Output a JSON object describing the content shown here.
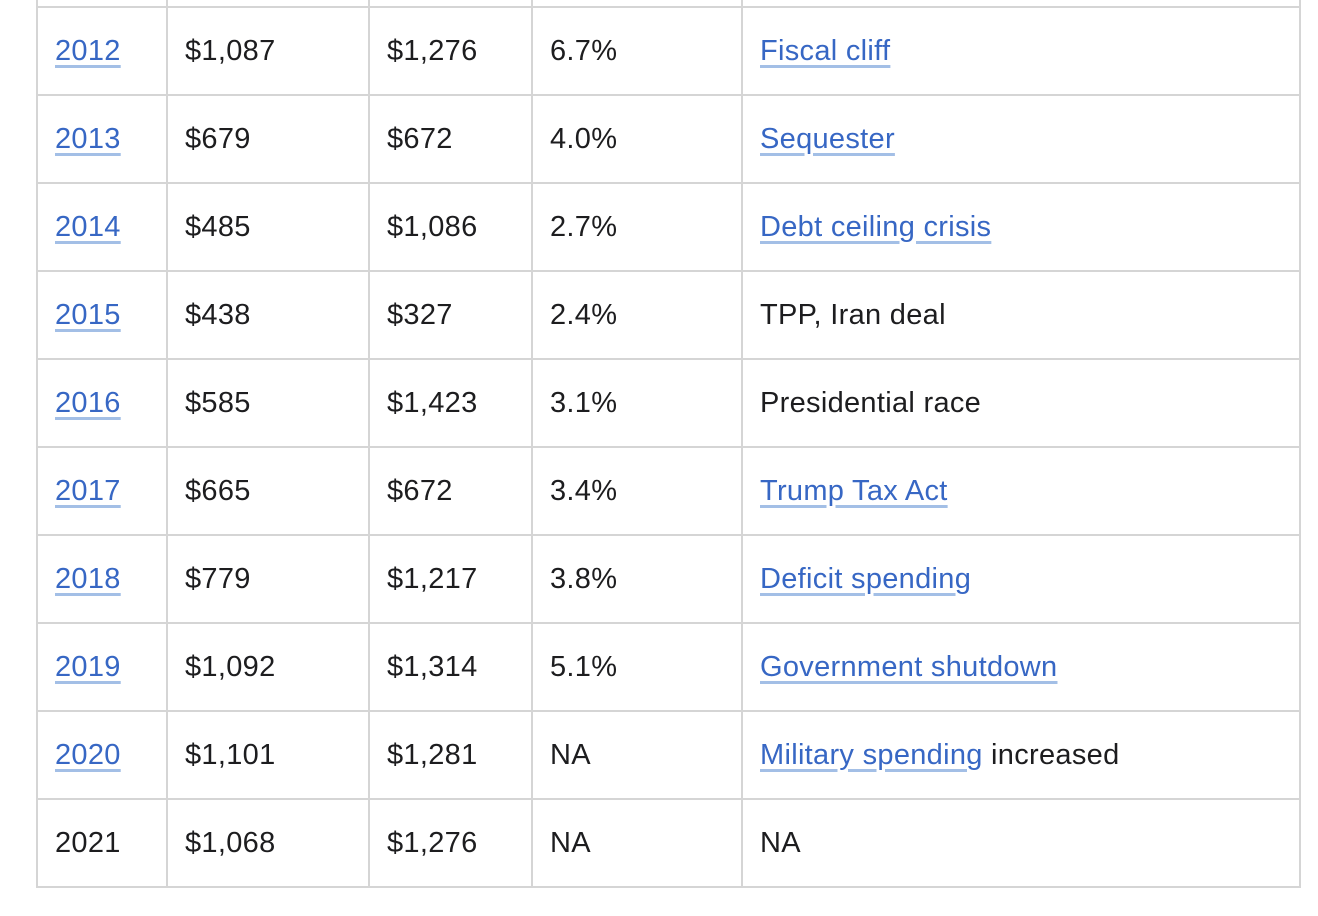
{
  "colors": {
    "link": "#3767c4",
    "link_underline": "#a3bfe6",
    "text": "#1d1d1f",
    "border": "#d5d5d5",
    "background": "#ffffff"
  },
  "table": {
    "columns": [
      "year",
      "amount-1",
      "amount-2",
      "percent",
      "event"
    ],
    "rows": [
      {
        "cells": [
          {
            "name": "year-cell",
            "parts": [
              {
                "text": "2012",
                "link": true
              }
            ]
          },
          {
            "name": "amount-1-cell",
            "parts": [
              {
                "text": "$1,087",
                "link": false
              }
            ]
          },
          {
            "name": "amount-2-cell",
            "parts": [
              {
                "text": "$1,276",
                "link": false
              }
            ]
          },
          {
            "name": "percent-cell",
            "parts": [
              {
                "text": "6.7%",
                "link": false
              }
            ]
          },
          {
            "name": "event-cell",
            "parts": [
              {
                "text": "Fiscal cliff",
                "link": true
              }
            ]
          }
        ]
      },
      {
        "cells": [
          {
            "name": "year-cell",
            "parts": [
              {
                "text": "2013",
                "link": true
              }
            ]
          },
          {
            "name": "amount-1-cell",
            "parts": [
              {
                "text": "$679",
                "link": false
              }
            ]
          },
          {
            "name": "amount-2-cell",
            "parts": [
              {
                "text": "$672",
                "link": false
              }
            ]
          },
          {
            "name": "percent-cell",
            "parts": [
              {
                "text": "4.0%",
                "link": false
              }
            ]
          },
          {
            "name": "event-cell",
            "parts": [
              {
                "text": "Sequester",
                "link": true
              }
            ]
          }
        ]
      },
      {
        "cells": [
          {
            "name": "year-cell",
            "parts": [
              {
                "text": "2014",
                "link": true
              }
            ]
          },
          {
            "name": "amount-1-cell",
            "parts": [
              {
                "text": "$485",
                "link": false
              }
            ]
          },
          {
            "name": "amount-2-cell",
            "parts": [
              {
                "text": "$1,086",
                "link": false
              }
            ]
          },
          {
            "name": "percent-cell",
            "parts": [
              {
                "text": "2.7%",
                "link": false
              }
            ]
          },
          {
            "name": "event-cell",
            "parts": [
              {
                "text": "Debt ceiling crisis",
                "link": true
              }
            ]
          }
        ]
      },
      {
        "cells": [
          {
            "name": "year-cell",
            "parts": [
              {
                "text": "2015",
                "link": true
              }
            ]
          },
          {
            "name": "amount-1-cell",
            "parts": [
              {
                "text": "$438",
                "link": false
              }
            ]
          },
          {
            "name": "amount-2-cell",
            "parts": [
              {
                "text": "$327",
                "link": false
              }
            ]
          },
          {
            "name": "percent-cell",
            "parts": [
              {
                "text": "2.4%",
                "link": false
              }
            ]
          },
          {
            "name": "event-cell",
            "parts": [
              {
                "text": "TPP, Iran deal",
                "link": false
              }
            ]
          }
        ]
      },
      {
        "cells": [
          {
            "name": "year-cell",
            "parts": [
              {
                "text": "2016",
                "link": true
              }
            ]
          },
          {
            "name": "amount-1-cell",
            "parts": [
              {
                "text": "$585",
                "link": false
              }
            ]
          },
          {
            "name": "amount-2-cell",
            "parts": [
              {
                "text": "$1,423",
                "link": false
              }
            ]
          },
          {
            "name": "percent-cell",
            "parts": [
              {
                "text": "3.1%",
                "link": false
              }
            ]
          },
          {
            "name": "event-cell",
            "parts": [
              {
                "text": "Presidential race",
                "link": false
              }
            ]
          }
        ]
      },
      {
        "cells": [
          {
            "name": "year-cell",
            "parts": [
              {
                "text": "2017",
                "link": true
              }
            ]
          },
          {
            "name": "amount-1-cell",
            "parts": [
              {
                "text": "$665",
                "link": false
              }
            ]
          },
          {
            "name": "amount-2-cell",
            "parts": [
              {
                "text": "$672",
                "link": false
              }
            ]
          },
          {
            "name": "percent-cell",
            "parts": [
              {
                "text": "3.4%",
                "link": false
              }
            ]
          },
          {
            "name": "event-cell",
            "parts": [
              {
                "text": "Trump Tax Act",
                "link": true
              }
            ]
          }
        ]
      },
      {
        "cells": [
          {
            "name": "year-cell",
            "parts": [
              {
                "text": "2018",
                "link": true
              }
            ]
          },
          {
            "name": "amount-1-cell",
            "parts": [
              {
                "text": "$779",
                "link": false
              }
            ]
          },
          {
            "name": "amount-2-cell",
            "parts": [
              {
                "text": "$1,217",
                "link": false
              }
            ]
          },
          {
            "name": "percent-cell",
            "parts": [
              {
                "text": "3.8%",
                "link": false
              }
            ]
          },
          {
            "name": "event-cell",
            "parts": [
              {
                "text": "Deficit spending",
                "link": true
              }
            ]
          }
        ]
      },
      {
        "cells": [
          {
            "name": "year-cell",
            "parts": [
              {
                "text": "2019",
                "link": true
              }
            ]
          },
          {
            "name": "amount-1-cell",
            "parts": [
              {
                "text": "$1,092",
                "link": false
              }
            ]
          },
          {
            "name": "amount-2-cell",
            "parts": [
              {
                "text": "$1,314",
                "link": false
              }
            ]
          },
          {
            "name": "percent-cell",
            "parts": [
              {
                "text": "5.1%",
                "link": false
              }
            ]
          },
          {
            "name": "event-cell",
            "parts": [
              {
                "text": "Government shutdown",
                "link": true
              }
            ]
          }
        ]
      },
      {
        "cells": [
          {
            "name": "year-cell",
            "parts": [
              {
                "text": "2020",
                "link": true
              }
            ]
          },
          {
            "name": "amount-1-cell",
            "parts": [
              {
                "text": "$1,101",
                "link": false
              }
            ]
          },
          {
            "name": "amount-2-cell",
            "parts": [
              {
                "text": "$1,281",
                "link": false
              }
            ]
          },
          {
            "name": "percent-cell",
            "parts": [
              {
                "text": "NA",
                "link": false
              }
            ]
          },
          {
            "name": "event-cell",
            "parts": [
              {
                "text": "Military spending",
                "link": true
              },
              {
                "text": " increased",
                "link": false
              }
            ]
          }
        ]
      },
      {
        "cells": [
          {
            "name": "year-cell",
            "parts": [
              {
                "text": "2021",
                "link": false
              }
            ]
          },
          {
            "name": "amount-1-cell",
            "parts": [
              {
                "text": "$1,068",
                "link": false
              }
            ]
          },
          {
            "name": "amount-2-cell",
            "parts": [
              {
                "text": "$1,276",
                "link": false
              }
            ]
          },
          {
            "name": "percent-cell",
            "parts": [
              {
                "text": "NA",
                "link": false
              }
            ]
          },
          {
            "name": "event-cell",
            "parts": [
              {
                "text": "NA",
                "link": false
              }
            ]
          }
        ]
      }
    ]
  }
}
